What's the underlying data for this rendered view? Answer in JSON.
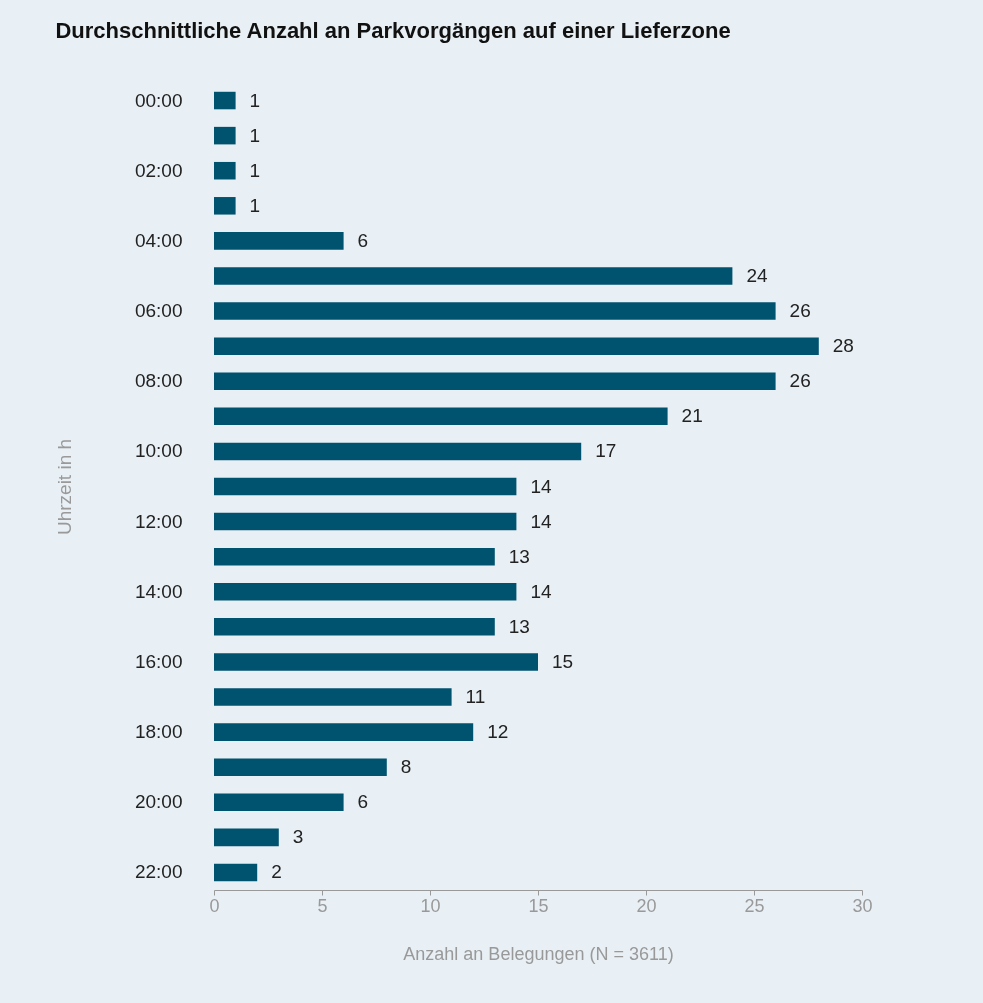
{
  "chart_data": {
    "type": "bar",
    "orientation": "horizontal",
    "title": "Durchschnittliche Anzahl an Parkvorgängen auf einer Lieferzone",
    "xlabel": "Anzahl an Belegungen (N = 3611)",
    "ylabel": "Uhrzeit in h",
    "categories": [
      "00:00",
      null,
      "02:00",
      null,
      "04:00",
      null,
      "06:00",
      null,
      "08:00",
      null,
      "10:00",
      null,
      "12:00",
      null,
      "14:00",
      null,
      "16:00",
      null,
      "18:00",
      null,
      "20:00",
      null,
      "22:00"
    ],
    "values": [
      1,
      1,
      1,
      1,
      6,
      24,
      26,
      28,
      26,
      21,
      17,
      14,
      14,
      13,
      14,
      13,
      15,
      11,
      12,
      8,
      6,
      3,
      2
    ],
    "color": "#00536f",
    "xlim": [
      0,
      30
    ],
    "xticks": [
      0,
      5,
      10,
      15,
      20,
      25,
      30
    ],
    "data_labels": true,
    "grid": false
  }
}
